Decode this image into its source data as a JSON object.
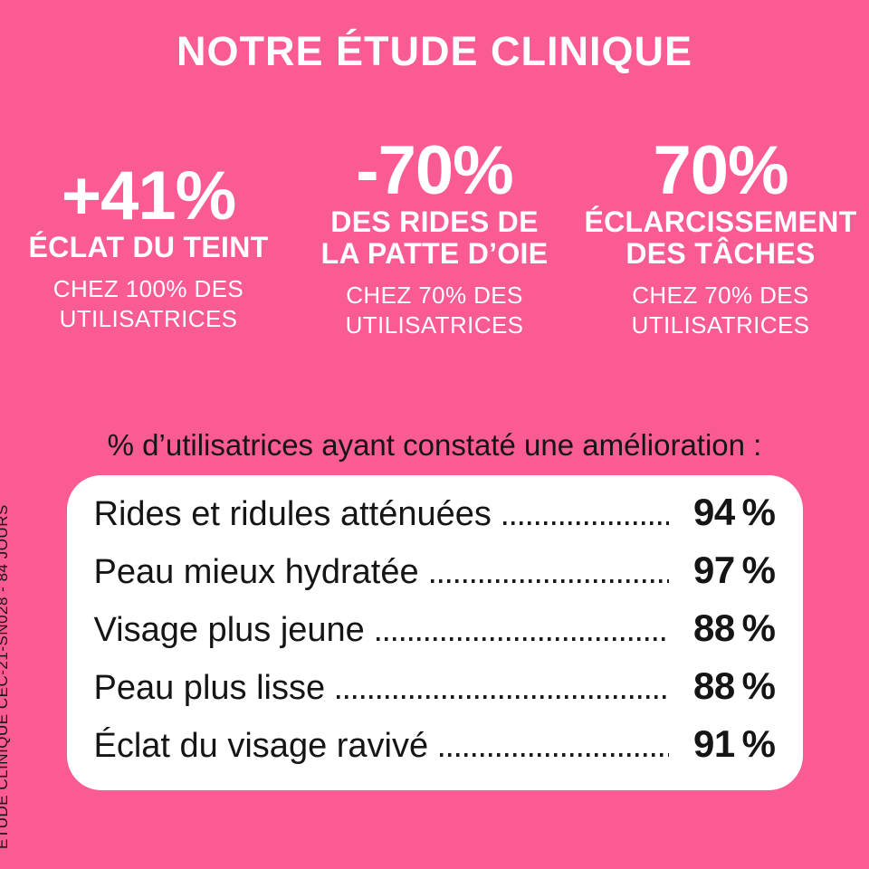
{
  "colors": {
    "background": "#FA5B95",
    "card": "#FFFFFF",
    "text_on_pink": "#FFFFFF",
    "text_dark": "#151515"
  },
  "title": "NOTRE ÉTUDE CLINIQUE",
  "stats": [
    {
      "number": "+41%",
      "subtitle_lines": [
        "ÉCLAT DU TEINT"
      ],
      "audience_lines": [
        "CHEZ 100% DES",
        "UTILISATRICES"
      ]
    },
    {
      "number": "-70%",
      "subtitle_lines": [
        "DES RIDES DE",
        "LA PATTE D’OIE"
      ],
      "audience_lines": [
        "CHEZ 70% DES",
        "UTILISATRICES"
      ]
    },
    {
      "number": "70%",
      "subtitle_lines": [
        "ÉCLARCISSEMENT",
        "DES TÂCHES"
      ],
      "audience_lines": [
        "CHEZ 70% DES",
        "UTILISATRICES"
      ]
    }
  ],
  "list_heading": "% d’utilisatrices ayant constaté une amélioration :",
  "results": [
    {
      "label": "Rides et ridules atténuées",
      "value": "94 %"
    },
    {
      "label": "Peau mieux hydratée",
      "value": "97 %"
    },
    {
      "label": "Visage plus jeune",
      "value": "88 %"
    },
    {
      "label": "Peau plus lisse",
      "value": "88 %"
    },
    {
      "label": "Éclat du visage ravivé",
      "value": "91 %"
    }
  ],
  "footnote": "ÉTUDE CLINIQUE CEC-21-SN028 - 84 JOURS",
  "chart_data": {
    "type": "table",
    "title": "% d’utilisatrices ayant constaté une amélioration :",
    "categories": [
      "Rides et ridules atténuées",
      "Peau mieux hydratée",
      "Visage plus jeune",
      "Peau plus lisse",
      "Éclat du visage ravivé"
    ],
    "values": [
      94,
      97,
      88,
      88,
      91
    ],
    "unit": "%",
    "headline_stats": [
      {
        "value": "+41%",
        "metric": "ÉCLAT DU TEINT",
        "cohort": "CHEZ 100% DES UTILISATRICES"
      },
      {
        "value": "-70%",
        "metric": "DES RIDES DE LA PATTE D’OIE",
        "cohort": "CHEZ 70% DES UTILISATRICES"
      },
      {
        "value": "70%",
        "metric": "ÉCLARCISSEMENT DES TÂCHES",
        "cohort": "CHEZ 70% DES UTILISATRICES"
      }
    ]
  }
}
